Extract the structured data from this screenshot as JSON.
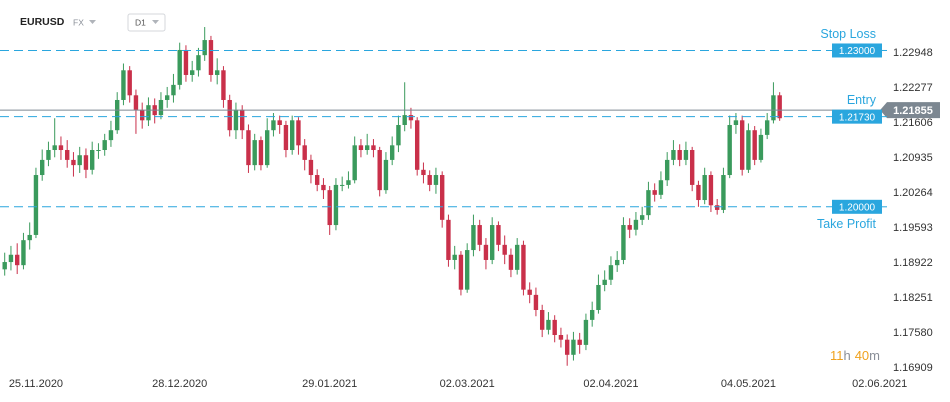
{
  "header": {
    "symbol": "EURUSD",
    "market": "FX",
    "timeframe": "D1"
  },
  "timer": {
    "hours": "11",
    "hours_unit": "h",
    "minutes": "40",
    "minutes_unit": "m"
  },
  "chart_data": {
    "type": "candlestick",
    "categories": [
      null,
      null,
      null,
      null,
      null,
      "25.11.2020",
      null,
      null,
      null,
      null,
      null,
      null,
      null,
      null,
      null,
      null,
      null,
      null,
      null,
      null,
      null,
      null,
      null,
      null,
      null,
      null,
      null,
      null,
      "28.12.2020",
      null,
      null,
      null,
      null,
      null,
      null,
      null,
      null,
      null,
      null,
      null,
      null,
      null,
      null,
      null,
      null,
      null,
      null,
      null,
      null,
      null,
      null,
      null,
      "29.01.2021",
      null,
      null,
      null,
      null,
      null,
      null,
      null,
      null,
      null,
      null,
      null,
      null,
      null,
      null,
      null,
      null,
      null,
      null,
      null,
      null,
      null,
      "02.03.2021",
      null,
      null,
      null,
      null,
      null,
      null,
      null,
      null,
      null,
      null,
      null,
      null,
      null,
      null,
      null,
      null,
      null,
      null,
      null,
      null,
      null,
      null,
      "02.04.2021",
      null,
      null,
      null,
      null,
      null,
      null,
      null,
      null,
      null,
      null,
      null,
      null,
      null,
      null,
      null,
      null,
      null,
      null,
      null,
      null,
      null,
      "04.05.2021",
      null,
      null,
      null,
      null,
      null,
      null,
      null,
      null,
      null,
      null,
      null,
      null,
      null,
      null,
      null,
      null,
      null,
      null,
      null,
      null,
      "02.06.2021"
    ],
    "open": [
      1.188,
      1.1894,
      1.1908,
      1.1888,
      1.1936,
      1.1946,
      1.2061,
      1.209,
      1.2109,
      1.2118,
      1.2109,
      1.209,
      1.208,
      1.2099,
      1.2071,
      1.2109,
      1.2109,
      1.2128,
      1.2147,
      1.2205,
      1.2262,
      1.2214,
      1.2186,
      1.2166,
      1.2195,
      1.2176,
      1.2205,
      1.2214,
      1.2234,
      1.2301,
      1.2253,
      1.2262,
      1.2291,
      1.232,
      1.2253,
      1.2262,
      1.2205,
      1.2147,
      1.2186,
      1.2147,
      1.208,
      1.2128,
      1.208,
      1.2147,
      1.2166,
      1.2157,
      1.2109,
      1.2166,
      1.2118,
      1.209,
      1.2061,
      1.2042,
      1.2032,
      1.1965,
      1.2042,
      1.2042,
      1.2051,
      1.2118,
      1.2109,
      1.2118,
      1.2109,
      1.2032,
      1.209,
      1.2118,
      1.2157,
      1.2176,
      1.2166,
      1.2071,
      1.2061,
      1.2042,
      1.2061,
      1.1975,
      1.1898,
      1.1908,
      1.1841,
      1.1917,
      1.1965,
      1.1927,
      1.1898,
      1.1965,
      1.1927,
      1.1908,
      1.1879,
      1.1927,
      1.1841,
      1.1831,
      1.1802,
      1.1764,
      1.1783,
      1.1754,
      1.1745,
      1.1716,
      1.1745,
      1.1735,
      1.1783,
      1.1802,
      1.185,
      1.186,
      1.1888,
      1.1898,
      1.1965,
      1.1956,
      1.1975,
      1.1984,
      1.2032,
      1.2023,
      1.2051,
      1.209,
      1.2109,
      1.209,
      1.2109,
      1.2042,
      1.2013,
      1.2061,
      1.2003,
      1.1994,
      1.2061,
      1.2157,
      1.2166,
      1.2071,
      1.2147,
      1.209,
      1.2138,
      1.2166,
      1.2214,
      null,
      null,
      null,
      null,
      null,
      null,
      null,
      null,
      null,
      null,
      null,
      null,
      null,
      null,
      null,
      null
    ],
    "high": [
      1.1912,
      1.1925,
      1.193,
      1.195,
      1.197,
      1.2075,
      1.211,
      1.2125,
      1.217,
      1.2135,
      1.2128,
      1.2105,
      1.2115,
      1.2112,
      1.2125,
      1.2122,
      1.214,
      1.2165,
      1.222,
      1.2275,
      1.227,
      1.2225,
      1.22,
      1.221,
      1.2208,
      1.222,
      1.223,
      1.2255,
      1.2315,
      1.231,
      1.228,
      1.2305,
      1.2345,
      1.2328,
      1.2285,
      1.227,
      1.2215,
      1.22,
      1.2195,
      1.2158,
      1.214,
      1.2135,
      1.217,
      1.218,
      1.2175,
      1.2165,
      1.2175,
      1.2172,
      1.213,
      1.21,
      1.2072,
      1.2055,
      1.204,
      1.2055,
      1.2058,
      1.2068,
      1.2135,
      1.213,
      1.214,
      1.213,
      1.2115,
      1.2105,
      1.2135,
      1.2175,
      1.2239,
      1.219,
      1.2172,
      1.2085,
      1.207,
      1.2075,
      1.2068,
      1.1985,
      1.1925,
      1.1915,
      1.193,
      1.1985,
      1.1975,
      1.194,
      1.198,
      1.1972,
      1.1945,
      1.192,
      1.194,
      1.1935,
      1.1855,
      1.1845,
      1.1812,
      1.1798,
      1.1792,
      1.1768,
      1.1755,
      1.176,
      1.1758,
      1.1795,
      1.1818,
      1.187,
      1.1878,
      1.1905,
      1.1915,
      1.198,
      1.1978,
      1.199,
      1.2,
      1.2048,
      1.2045,
      1.2068,
      1.2105,
      1.2128,
      1.212,
      1.2125,
      1.2115,
      1.205,
      1.2075,
      1.2068,
      1.2015,
      1.2075,
      1.2175,
      1.218,
      1.2175,
      1.216,
      1.2155,
      1.215,
      1.218,
      1.2239,
      1.222,
      null,
      null,
      null,
      null,
      null,
      null,
      null,
      null,
      null,
      null,
      null,
      null,
      null,
      null,
      null,
      null
    ],
    "low": [
      1.1868,
      1.1878,
      1.1871,
      1.188,
      1.1918,
      1.194,
      1.205,
      1.2078,
      1.2095,
      1.209,
      1.2075,
      1.2058,
      1.2065,
      1.2055,
      1.2062,
      1.2092,
      1.2098,
      1.2115,
      1.214,
      1.2195,
      1.22,
      1.214,
      1.215,
      1.2155,
      1.216,
      1.2168,
      1.219,
      1.22,
      1.2225,
      1.224,
      1.224,
      1.225,
      1.228,
      1.224,
      1.2235,
      1.219,
      1.2135,
      1.213,
      1.213,
      1.2065,
      1.207,
      1.207,
      1.2075,
      1.2135,
      1.214,
      1.2095,
      1.21,
      1.21,
      1.207,
      1.2045,
      1.203,
      1.2015,
      1.1946,
      1.1955,
      1.203,
      1.2035,
      1.2045,
      1.2095,
      1.21,
      1.2095,
      1.202,
      1.2025,
      1.208,
      1.2105,
      1.2145,
      1.215,
      1.206,
      1.2045,
      1.203,
      1.2025,
      1.196,
      1.1885,
      1.188,
      1.183,
      1.1835,
      1.1905,
      1.1915,
      1.188,
      1.189,
      1.1915,
      1.189,
      1.1865,
      1.187,
      1.183,
      1.1815,
      1.179,
      1.175,
      1.1755,
      1.174,
      1.173,
      1.1695,
      1.1705,
      1.1718,
      1.1725,
      1.177,
      1.1795,
      1.1838,
      1.185,
      1.1875,
      1.189,
      1.194,
      1.1945,
      1.1965,
      1.1975,
      1.201,
      1.2015,
      1.204,
      1.208,
      1.2078,
      1.208,
      1.203,
      1.2,
      1.2005,
      1.199,
      1.1985,
      1.1988,
      1.2055,
      1.214,
      1.206,
      1.2065,
      1.208,
      1.2085,
      1.213,
      1.216,
      1.2165,
      null,
      null,
      null,
      null,
      null,
      null,
      null,
      null,
      null,
      null,
      null,
      null,
      null,
      null,
      null,
      null
    ],
    "close": [
      1.1894,
      1.1908,
      1.1888,
      1.1936,
      1.1946,
      1.2061,
      1.209,
      1.2109,
      1.2118,
      1.2109,
      1.209,
      1.208,
      1.2099,
      1.2071,
      1.2109,
      1.2109,
      1.2128,
      1.2147,
      1.2205,
      1.2262,
      1.2214,
      1.2186,
      1.2166,
      1.2195,
      1.2176,
      1.2205,
      1.2214,
      1.2234,
      1.2301,
      1.2253,
      1.2262,
      1.2291,
      1.232,
      1.2253,
      1.2262,
      1.2205,
      1.2147,
      1.2186,
      1.2147,
      1.208,
      1.2128,
      1.208,
      1.2147,
      1.2166,
      1.2157,
      1.2109,
      1.2166,
      1.2118,
      1.209,
      1.2061,
      1.2042,
      1.2032,
      1.1965,
      1.2042,
      1.2042,
      1.2051,
      1.2118,
      1.2109,
      1.2118,
      1.2109,
      1.2032,
      1.209,
      1.2118,
      1.2157,
      1.2176,
      1.2166,
      1.2071,
      1.2061,
      1.2042,
      1.2061,
      1.1975,
      1.1898,
      1.1908,
      1.1841,
      1.1917,
      1.1965,
      1.1927,
      1.1898,
      1.1965,
      1.1927,
      1.1908,
      1.1879,
      1.1927,
      1.1841,
      1.1831,
      1.1802,
      1.1764,
      1.1783,
      1.1754,
      1.1745,
      1.1716,
      1.1745,
      1.1735,
      1.1783,
      1.1802,
      1.185,
      1.186,
      1.1888,
      1.1898,
      1.1965,
      1.1956,
      1.1975,
      1.1984,
      1.2032,
      1.2023,
      1.2051,
      1.209,
      1.2109,
      1.209,
      1.2109,
      1.2042,
      1.2013,
      1.2061,
      1.2003,
      1.1994,
      1.2061,
      1.2157,
      1.2166,
      1.2071,
      1.2147,
      1.209,
      1.2138,
      1.2166,
      1.2214,
      1.217,
      null,
      null,
      null,
      null,
      null,
      null,
      null,
      null,
      null,
      null,
      null,
      null,
      null,
      null,
      null,
      null
    ],
    "up_color": "#3a9a5c",
    "down_color": "#c9304a",
    "ylim": [
      1.1683,
      1.237
    ],
    "yticks": [
      1.22948,
      1.22277,
      1.21606,
      1.20935,
      1.20264,
      1.19593,
      1.18922,
      1.18251,
      {
        "value": 1.1758,
        "label": "1.17580"
      },
      1.16909
    ],
    "grid": false,
    "levels": [
      {
        "name": "Stop Loss",
        "value": 1.23,
        "label": "1.23000",
        "name_position": "above"
      },
      {
        "name": "Entry",
        "value": 1.2173,
        "label": "1.21730",
        "name_position": "above"
      },
      {
        "name": "Take Profit",
        "value": 1.2,
        "label": "1.20000",
        "name_position": "below"
      }
    ],
    "level_color": "#2aa6de",
    "last_price": {
      "value": 1.21855,
      "label": "1.21855",
      "color": "#7c8791"
    }
  }
}
